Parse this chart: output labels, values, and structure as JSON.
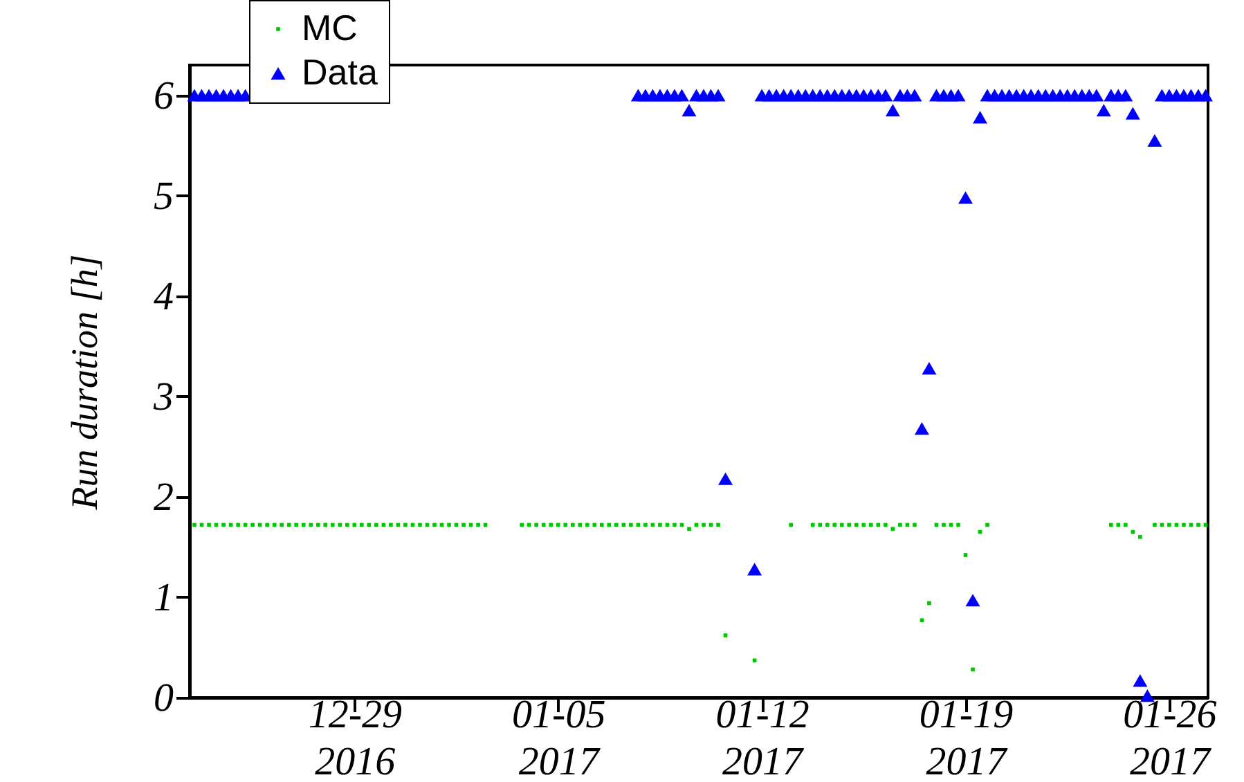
{
  "chart_data": {
    "type": "scatter",
    "ylabel": "Run duration  [h]",
    "x": [
      "2016-12-23T12:00",
      "2016-12-23T18:00",
      "2016-12-24T00:00",
      "2016-12-24T06:00",
      "2016-12-24T12:00",
      "2016-12-24T18:00",
      "2016-12-25T00:00",
      "2016-12-25T06:00",
      "2016-12-25T12:00",
      "2016-12-25T18:00",
      "2016-12-26T00:00",
      "2016-12-26T06:00",
      "2016-12-26T12:00",
      "2016-12-26T18:00",
      "2016-12-27T00:00",
      "2016-12-27T06:00",
      "2016-12-27T12:00",
      "2016-12-27T18:00",
      "2016-12-28T00:00",
      "2016-12-28T06:00",
      "2016-12-28T12:00",
      "2016-12-28T18:00",
      "2016-12-29T00:00",
      "2016-12-29T06:00",
      "2016-12-29T12:00",
      "2016-12-29T18:00",
      "2016-12-30T00:00",
      "2016-12-30T06:00",
      "2016-12-30T12:00",
      "2016-12-30T18:00",
      "2016-12-31T00:00",
      "2016-12-31T06:00",
      "2016-12-31T12:00",
      "2016-12-31T18:00",
      "2017-01-01T00:00",
      "2017-01-01T06:00",
      "2017-01-01T12:00",
      "2017-01-01T18:00",
      "2017-01-02T00:00",
      "2017-01-02T06:00",
      "2017-01-02T12:00",
      "2017-01-02T18:00",
      "2017-01-03T00:00",
      "2017-01-03T06:00",
      "2017-01-03T12:00",
      "2017-01-03T18:00",
      "2017-01-04T00:00",
      "2017-01-04T06:00",
      "2017-01-04T12:00",
      "2017-01-04T18:00",
      "2017-01-05T00:00",
      "2017-01-05T06:00",
      "2017-01-05T12:00",
      "2017-01-05T18:00",
      "2017-01-06T00:00",
      "2017-01-06T06:00",
      "2017-01-06T12:00",
      "2017-01-06T18:00",
      "2017-01-07T00:00",
      "2017-01-07T06:00",
      "2017-01-07T12:00",
      "2017-01-07T18:00",
      "2017-01-08T00:00",
      "2017-01-08T06:00",
      "2017-01-08T12:00",
      "2017-01-08T18:00",
      "2017-01-09T00:00",
      "2017-01-09T06:00",
      "2017-01-09T12:00",
      "2017-01-09T18:00",
      "2017-01-10T00:00",
      "2017-01-10T06:00",
      "2017-01-10T12:00",
      "2017-01-10T18:00",
      "2017-01-11T00:00",
      "2017-01-11T06:00",
      "2017-01-11T12:00",
      "2017-01-11T18:00",
      "2017-01-12T00:00",
      "2017-01-12T06:00",
      "2017-01-12T12:00",
      "2017-01-12T18:00",
      "2017-01-13T00:00",
      "2017-01-13T06:00",
      "2017-01-13T12:00",
      "2017-01-13T18:00",
      "2017-01-14T00:00",
      "2017-01-14T06:00",
      "2017-01-14T12:00",
      "2017-01-14T18:00",
      "2017-01-15T00:00",
      "2017-01-15T06:00",
      "2017-01-15T12:00",
      "2017-01-15T18:00",
      "2017-01-16T00:00",
      "2017-01-16T06:00",
      "2017-01-16T12:00",
      "2017-01-16T18:00",
      "2017-01-17T00:00",
      "2017-01-17T06:00",
      "2017-01-17T12:00",
      "2017-01-17T18:00",
      "2017-01-18T00:00",
      "2017-01-18T06:00",
      "2017-01-18T12:00",
      "2017-01-18T18:00",
      "2017-01-19T00:00",
      "2017-01-19T06:00",
      "2017-01-19T12:00",
      "2017-01-19T18:00",
      "2017-01-20T00:00",
      "2017-01-20T06:00",
      "2017-01-20T12:00",
      "2017-01-20T18:00",
      "2017-01-21T00:00",
      "2017-01-21T06:00",
      "2017-01-21T12:00",
      "2017-01-21T18:00",
      "2017-01-22T00:00",
      "2017-01-22T06:00",
      "2017-01-22T12:00",
      "2017-01-22T18:00",
      "2017-01-23T00:00",
      "2017-01-23T06:00",
      "2017-01-23T12:00",
      "2017-01-23T18:00",
      "2017-01-24T00:00",
      "2017-01-24T06:00",
      "2017-01-24T12:00",
      "2017-01-24T18:00",
      "2017-01-25T00:00",
      "2017-01-25T06:00",
      "2017-01-25T12:00",
      "2017-01-25T18:00",
      "2017-01-26T00:00",
      "2017-01-26T06:00",
      "2017-01-26T12:00",
      "2017-01-26T18:00",
      "2017-01-27T00:00",
      "2017-01-27T06:00"
    ],
    "series": [
      {
        "name": "MC",
        "color": "#00c800",
        "marker": "square",
        "values": [
          1.72,
          1.72,
          1.72,
          1.72,
          1.72,
          1.72,
          1.72,
          1.72,
          1.72,
          1.72,
          1.72,
          1.72,
          1.72,
          1.72,
          1.72,
          1.72,
          1.72,
          1.72,
          1.72,
          1.72,
          1.72,
          1.72,
          1.72,
          1.72,
          1.72,
          1.72,
          1.72,
          1.72,
          1.72,
          1.72,
          1.72,
          1.72,
          1.72,
          1.72,
          1.72,
          1.72,
          1.72,
          1.72,
          1.72,
          1.72,
          1.72,
          null,
          null,
          null,
          null,
          1.72,
          1.72,
          1.72,
          1.72,
          1.72,
          1.72,
          1.72,
          1.72,
          1.72,
          1.72,
          1.72,
          1.72,
          1.72,
          1.72,
          1.72,
          1.72,
          1.72,
          1.72,
          1.72,
          1.72,
          1.72,
          1.72,
          1.72,
          1.68,
          1.72,
          1.72,
          1.72,
          1.72,
          0.62,
          null,
          null,
          null,
          0.37,
          null,
          null,
          null,
          null,
          1.72,
          null,
          null,
          1.72,
          1.72,
          1.72,
          1.72,
          1.72,
          1.72,
          1.72,
          1.72,
          1.72,
          1.72,
          1.72,
          1.68,
          1.72,
          1.72,
          1.72,
          0.77,
          0.94,
          1.72,
          1.72,
          1.72,
          1.72,
          1.42,
          0.28,
          1.65,
          1.72,
          null,
          null,
          null,
          null,
          null,
          null,
          null,
          null,
          null,
          null,
          null,
          null,
          null,
          null,
          null,
          null,
          1.72,
          1.72,
          1.72,
          1.65,
          1.6,
          null,
          1.72,
          1.72,
          1.72,
          1.72,
          1.72,
          1.72,
          1.72,
          1.72
        ]
      },
      {
        "name": "Data",
        "color": "#0000ff",
        "marker": "triangle",
        "values": [
          6,
          6,
          6,
          6,
          6,
          6,
          6,
          6,
          null,
          null,
          null,
          null,
          null,
          null,
          null,
          null,
          null,
          null,
          null,
          null,
          null,
          null,
          null,
          null,
          null,
          null,
          null,
          null,
          null,
          null,
          null,
          null,
          null,
          null,
          null,
          null,
          null,
          null,
          null,
          null,
          null,
          null,
          null,
          null,
          null,
          null,
          null,
          null,
          null,
          null,
          null,
          null,
          null,
          null,
          null,
          null,
          null,
          null,
          null,
          null,
          null,
          6,
          6,
          6,
          6,
          6,
          6,
          6,
          5.85,
          6,
          6,
          6,
          6,
          2.18,
          null,
          null,
          null,
          1.28,
          6,
          6,
          6,
          6,
          6,
          6,
          6,
          6,
          6,
          6,
          6,
          6,
          6,
          6,
          6,
          6,
          6,
          6,
          5.85,
          6,
          6,
          6,
          2.68,
          3.28,
          6,
          6,
          6,
          6,
          4.98,
          0.97,
          5.78,
          6,
          6,
          6,
          6,
          6,
          6,
          6,
          6,
          6,
          6,
          6,
          6,
          6,
          6,
          6,
          6,
          5.85,
          6,
          6,
          6,
          5.82,
          0.17,
          0.02,
          5.55,
          6,
          6,
          6,
          6,
          6,
          6,
          6
        ]
      }
    ],
    "xlim": [
      "2016-12-23T08:00",
      "2017-01-27T08:00"
    ],
    "xticks": [
      {
        "value": "2016-12-29T00:00",
        "label": "12-29\n2016"
      },
      {
        "value": "2017-01-05T00:00",
        "label": "01-05\n2017"
      },
      {
        "value": "2017-01-12T00:00",
        "label": "01-12\n2017"
      },
      {
        "value": "2017-01-19T00:00",
        "label": "01-19\n2017"
      },
      {
        "value": "2017-01-26T00:00",
        "label": "01-26\n2017"
      }
    ],
    "ylim": [
      0,
      6.3
    ],
    "yticks": [
      0,
      1,
      2,
      3,
      4,
      5,
      6
    ],
    "legend": "top left",
    "grid": false
  }
}
